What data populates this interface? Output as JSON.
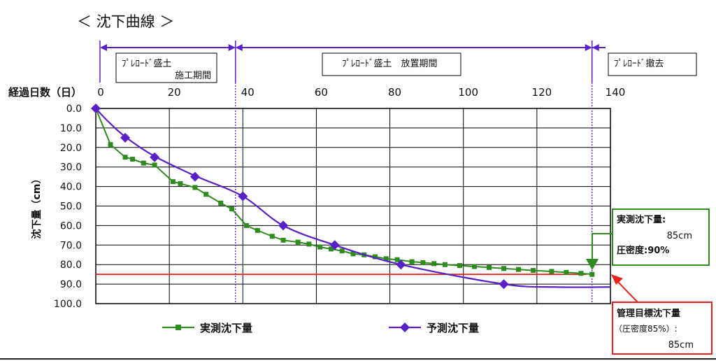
{
  "chart_data": {
    "type": "line",
    "title": "＜ 沈下曲線 ＞",
    "xlabel": "経過日数（日）",
    "ylabel": "沈下量（cm）",
    "xlim": [
      0,
      140
    ],
    "ylim": [
      0,
      100
    ],
    "y_inverted": true,
    "x_ticks": [
      0,
      20,
      40,
      60,
      80,
      100,
      120,
      140
    ],
    "x_tick_labels": [
      "0",
      "20",
      "40",
      "60",
      "80",
      "100",
      "120",
      "140"
    ],
    "y_ticks": [
      0,
      10,
      20,
      30,
      40,
      50,
      60,
      70,
      80,
      90,
      100
    ],
    "y_tick_labels": [
      "0.0",
      "10.0",
      "20.0",
      "30.0",
      "40.0",
      "50.0",
      "60.0",
      "70.0",
      "80.0",
      "90.0",
      "100.0"
    ],
    "grid": true,
    "legend_position": "bottom",
    "phase_boundaries": [
      38,
      135
    ],
    "phases": [
      {
        "label_lines": [
          "ﾌﾟﾚﾛｰﾄﾞ盛土",
          "施工期間"
        ],
        "start": 0,
        "end": 38
      },
      {
        "label_lines": [
          "ﾌﾟﾚﾛｰﾄﾞ盛土　放置期間"
        ],
        "start": 38,
        "end": 135
      },
      {
        "label_lines": [
          "ﾌﾟﾚﾛｰﾄﾞ撤去"
        ],
        "start": 135,
        "end": 140
      }
    ],
    "series": [
      {
        "name": "実測沈下量",
        "color": "#2e8b1e",
        "marker": "square",
        "x": [
          0,
          4,
          8,
          10,
          13,
          16,
          21,
          23,
          27,
          30,
          34,
          37,
          41,
          44,
          48,
          51,
          55,
          58,
          61,
          64,
          67,
          70,
          73,
          76,
          79,
          82,
          86,
          89,
          92,
          95,
          99,
          103,
          107,
          111,
          115,
          119,
          124,
          128,
          132,
          135
        ],
        "y": [
          0,
          18.5,
          25,
          26,
          28,
          29,
          37.5,
          38.5,
          40.5,
          44,
          48.5,
          51.5,
          60,
          62.5,
          65.5,
          67.5,
          68.5,
          69.5,
          71,
          72,
          73,
          74.5,
          75,
          76,
          77,
          77.5,
          78.5,
          79,
          79.5,
          80,
          80.5,
          81,
          81.5,
          82,
          82.5,
          83,
          83.5,
          84,
          84.5,
          85
        ]
      },
      {
        "name": "予測沈下量",
        "color": "#5a20c8",
        "marker": "diamond",
        "x": [
          0,
          8,
          16,
          27,
          40,
          51,
          65,
          83,
          111
        ],
        "y": [
          0,
          15,
          25,
          35,
          45,
          60,
          70,
          80,
          90
        ],
        "curve": [
          [
            0,
            0
          ],
          [
            3,
            6
          ],
          [
            8,
            14.5
          ],
          [
            16,
            24.5
          ],
          [
            27,
            34.5
          ],
          [
            40,
            45
          ],
          [
            51,
            60
          ],
          [
            65,
            70
          ],
          [
            83,
            80
          ],
          [
            111,
            90
          ],
          [
            125,
            91.5
          ],
          [
            140,
            91.5
          ]
        ]
      }
    ],
    "target_line": {
      "value": 85,
      "color": "#e8231c"
    },
    "annotations": {
      "measured": {
        "lines": [
          "実測沈下量:",
          "85cm",
          "圧密度:90%"
        ],
        "color": "#2e8b1e"
      },
      "target": {
        "lines": [
          "管理目標沈下量",
          "（圧密度85%）:",
          "85cm"
        ],
        "color": "#e8231c"
      }
    }
  }
}
